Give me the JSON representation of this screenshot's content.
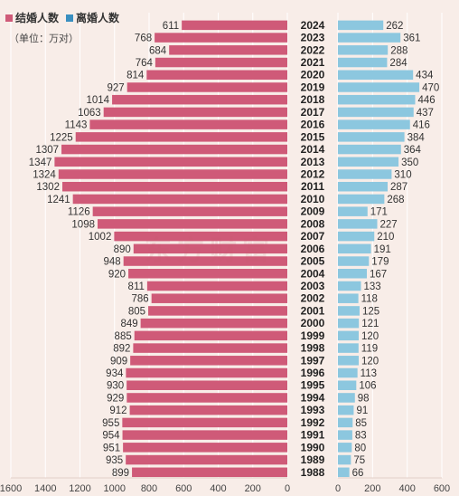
{
  "legend": {
    "marriage_label": "结婚人数",
    "divorce_label": "离婚人数"
  },
  "unit_label": "（单位：万对）",
  "watermark": "东方财富",
  "colors": {
    "marriage": "#cf5a78",
    "divorce": "#8cc7df",
    "background": "#f8ede8",
    "year_text": "#222222",
    "grid": "#ffffff"
  },
  "chart_data": {
    "type": "bar",
    "orientation": "horizontal-back-to-back",
    "categories": [
      "2024",
      "2023",
      "2022",
      "2021",
      "2020",
      "2019",
      "2018",
      "2017",
      "2016",
      "2015",
      "2014",
      "2013",
      "2012",
      "2011",
      "2010",
      "2009",
      "2008",
      "2007",
      "2006",
      "2005",
      "2004",
      "2003",
      "2002",
      "2001",
      "2000",
      "1999",
      "1998",
      "1997",
      "1996",
      "1995",
      "1994",
      "1993",
      "1992",
      "1991",
      "1990",
      "1989",
      "1988"
    ],
    "series": [
      {
        "name": "结婚人数",
        "side": "left",
        "values": [
          611,
          768,
          684,
          764,
          814,
          927,
          1014,
          1063,
          1143,
          1225,
          1307,
          1347,
          1324,
          1302,
          1241,
          1126,
          1098,
          1002,
          890,
          948,
          920,
          811,
          786,
          805,
          849,
          885,
          892,
          909,
          934,
          930,
          929,
          912,
          955,
          954,
          951,
          935,
          899
        ]
      },
      {
        "name": "离婚人数",
        "side": "right",
        "values": [
          262,
          361,
          288,
          284,
          434,
          470,
          446,
          437,
          416,
          384,
          364,
          350,
          310,
          287,
          268,
          171,
          227,
          210,
          191,
          179,
          167,
          133,
          118,
          125,
          121,
          120,
          119,
          120,
          113,
          106,
          98,
          91,
          85,
          83,
          80,
          75,
          66
        ]
      }
    ],
    "left_axis": {
      "ticks": [
        1600,
        1400,
        1200,
        1000,
        800,
        600,
        400,
        200,
        0
      ],
      "max": 1600
    },
    "right_axis": {
      "ticks": [
        0,
        200,
        400,
        600
      ],
      "max": 600
    },
    "grid": true,
    "legend_position": "top-left"
  }
}
